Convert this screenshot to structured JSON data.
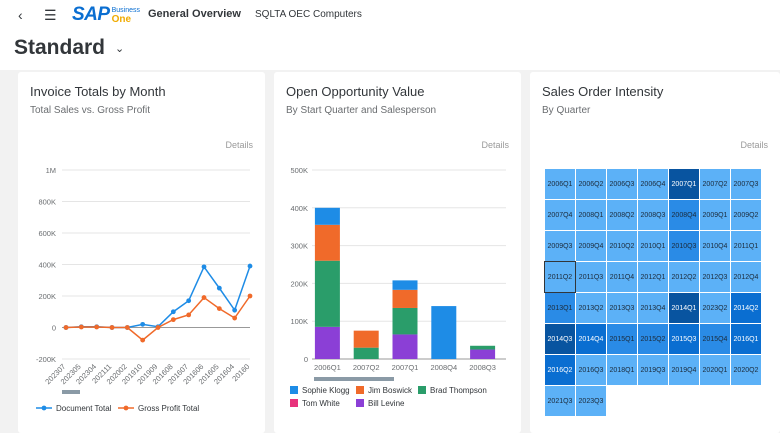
{
  "shell": {
    "back_icon": "chevron-left-icon",
    "menu_icon": "list-icon",
    "logo_text": "SAP",
    "logo_sub1": "Business",
    "logo_sub2": "One",
    "app_title": "General Overview",
    "company": "SQLTA OEC Computers"
  },
  "variant": {
    "label": "Standard",
    "caret": "⌄"
  },
  "cards": [
    {
      "title": "Invoice Totals by Month",
      "subtitle": "Total Sales vs. Gross Profit",
      "details": "Details"
    },
    {
      "title": "Open Opportunity Value",
      "subtitle": "By Start Quarter and Salesperson",
      "details": "Details"
    },
    {
      "title": "Sales Order Intensity",
      "subtitle": "By Quarter",
      "details": "Details"
    }
  ],
  "chart_data": [
    {
      "type": "line",
      "title": "Invoice Totals by Month",
      "subtitle": "Total Sales vs. Gross Profit",
      "y_ticks": [
        "1M",
        "800K",
        "600K",
        "400K",
        "200K",
        "0",
        "-200K"
      ],
      "ylim": [
        -200000,
        1000000
      ],
      "categories": [
        "202307",
        "202305",
        "202304",
        "202111",
        "202002",
        "201910",
        "201909",
        "201608",
        "201607",
        "201606",
        "201605",
        "201604",
        "20160"
      ],
      "series": [
        {
          "name": "Document Total",
          "color": "#1e8ce6",
          "values": [
            0,
            5000,
            5000,
            0,
            0,
            20000,
            5000,
            100000,
            170000,
            385000,
            250000,
            110000,
            390000
          ]
        },
        {
          "name": "Gross Profit Total",
          "color": "#f06a2a",
          "values": [
            0,
            3000,
            3000,
            0,
            0,
            -80000,
            0,
            50000,
            80000,
            190000,
            120000,
            60000,
            200000
          ]
        }
      ],
      "legend": "bottom"
    },
    {
      "type": "bar",
      "stacked": true,
      "title": "Open Opportunity Value",
      "subtitle": "By Start Quarter and Salesperson",
      "y_ticks": [
        "500K",
        "400K",
        "300K",
        "200K",
        "100K",
        "0"
      ],
      "ylim": [
        0,
        500000
      ],
      "categories": [
        "2006Q1",
        "2007Q2",
        "2007Q1",
        "2008Q4",
        "2008Q3"
      ],
      "series": [
        {
          "name": "Sophie Klogg",
          "color": "#1e8ce6",
          "values": [
            45000,
            0,
            25000,
            140000,
            0
          ]
        },
        {
          "name": "Jim Boswick",
          "color": "#f06a2a",
          "values": [
            95000,
            45000,
            48000,
            0,
            0
          ]
        },
        {
          "name": "Brad Thompson",
          "color": "#2a9d6a",
          "values": [
            175000,
            30000,
            70000,
            0,
            10000
          ]
        },
        {
          "name": "Tom White",
          "color": "#e8327c",
          "values": [
            0,
            0,
            0,
            0,
            0
          ]
        },
        {
          "name": "Bill Levine",
          "color": "#8b3fd6",
          "values": [
            85000,
            0,
            65000,
            0,
            25000
          ]
        }
      ],
      "legend": "bottom"
    },
    {
      "type": "heatmap",
      "title": "Sales Order Intensity",
      "subtitle": "By Quarter",
      "cells": [
        {
          "label": "2006Q1",
          "level": 1
        },
        {
          "label": "2006Q2",
          "level": 1
        },
        {
          "label": "2006Q3",
          "level": 1
        },
        {
          "label": "2006Q4",
          "level": 1
        },
        {
          "label": "2007Q1",
          "level": 4
        },
        {
          "label": "2007Q2",
          "level": 1
        },
        {
          "label": "2007Q3",
          "level": 1
        },
        {
          "label": "2007Q4",
          "level": 1
        },
        {
          "label": "2008Q1",
          "level": 1
        },
        {
          "label": "2008Q2",
          "level": 1
        },
        {
          "label": "2008Q3",
          "level": 1
        },
        {
          "label": "2008Q4",
          "level": 2
        },
        {
          "label": "2009Q1",
          "level": 1
        },
        {
          "label": "2009Q2",
          "level": 1
        },
        {
          "label": "2009Q3",
          "level": 1
        },
        {
          "label": "2009Q4",
          "level": 1
        },
        {
          "label": "2010Q2",
          "level": 1
        },
        {
          "label": "2010Q1",
          "level": 1
        },
        {
          "label": "2010Q3",
          "level": 2
        },
        {
          "label": "2010Q4",
          "level": 1
        },
        {
          "label": "2011Q1",
          "level": 1
        },
        {
          "label": "2011Q2",
          "level": 1
        },
        {
          "label": "2011Q3",
          "level": 1
        },
        {
          "label": "2011Q4",
          "level": 1
        },
        {
          "label": "2012Q1",
          "level": 1
        },
        {
          "label": "2012Q2",
          "level": 1
        },
        {
          "label": "2012Q3",
          "level": 1
        },
        {
          "label": "2012Q4",
          "level": 1
        },
        {
          "label": "2013Q1",
          "level": 2
        },
        {
          "label": "2013Q2",
          "level": 1
        },
        {
          "label": "2013Q3",
          "level": 1
        },
        {
          "label": "2013Q4",
          "level": 1
        },
        {
          "label": "2014Q1",
          "level": 4
        },
        {
          "label": "2023Q2",
          "level": 1
        },
        {
          "label": "2014Q2",
          "level": 3
        },
        {
          "label": "2014Q3",
          "level": 4
        },
        {
          "label": "2014Q4",
          "level": 3
        },
        {
          "label": "2015Q1",
          "level": 2
        },
        {
          "label": "2015Q2",
          "level": 2
        },
        {
          "label": "2015Q3",
          "level": 3
        },
        {
          "label": "2015Q4",
          "level": 2
        },
        {
          "label": "2016Q1",
          "level": 3
        },
        {
          "label": "2016Q2",
          "level": 3
        },
        {
          "label": "2016Q3",
          "level": 1
        },
        {
          "label": "2018Q1",
          "level": 1
        },
        {
          "label": "2019Q3",
          "level": 1
        },
        {
          "label": "2019Q4",
          "level": 1
        },
        {
          "label": "2020Q1",
          "level": 1
        },
        {
          "label": "2020Q2",
          "level": 1
        },
        {
          "label": "2021Q3",
          "level": 1
        },
        {
          "label": "2023Q3",
          "level": 1
        }
      ],
      "selected": "2011Q2",
      "colors": [
        "#ffffff",
        "#5cb1f7",
        "#2a8be6",
        "#0a6ed1",
        "#0854a0"
      ]
    }
  ]
}
